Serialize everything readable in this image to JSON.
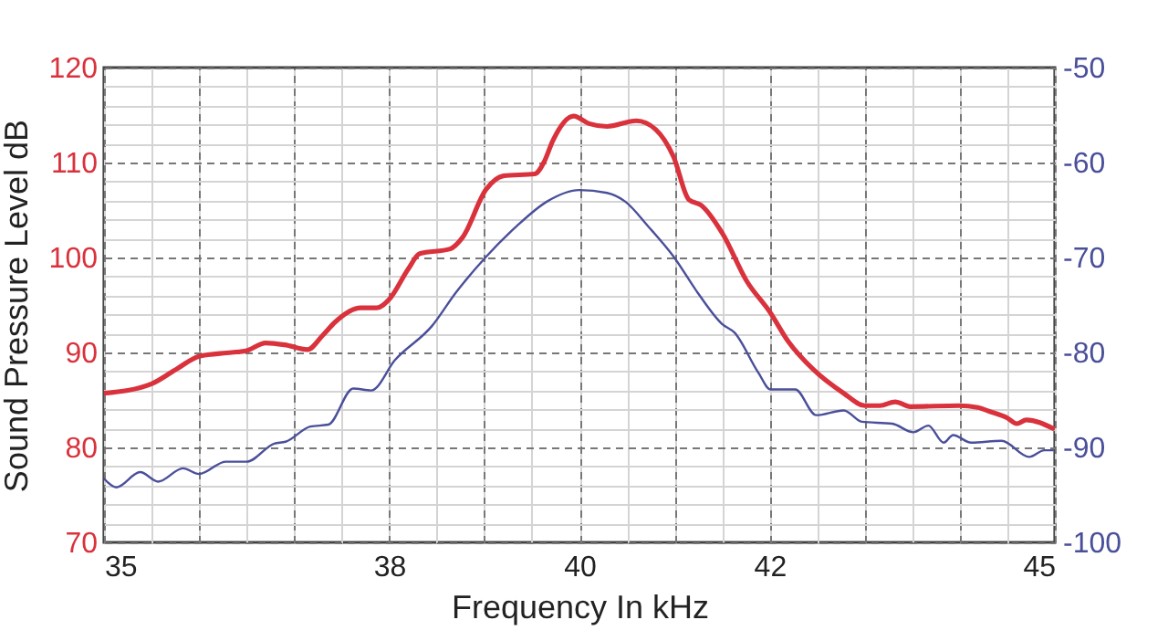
{
  "chart_data": {
    "type": "line",
    "xlabel": "Frequency In kHz",
    "ylabel": "Sound Pressure Level dB",
    "xlim": [
      35,
      45
    ],
    "xticks": [
      35,
      {
        "value": 35.5,
        "label": null
      },
      {
        "value": 36,
        "label": null
      },
      {
        "value": 36.5,
        "label": null
      },
      {
        "value": 37,
        "label": null
      },
      {
        "value": 37.5,
        "label": null
      },
      38,
      {
        "value": 38.5,
        "label": null
      },
      {
        "value": 39,
        "label": null
      },
      {
        "value": 39.5,
        "label": null
      },
      40,
      {
        "value": 40.5,
        "label": null
      },
      {
        "value": 41,
        "label": null
      },
      {
        "value": 41.5,
        "label": null
      },
      42,
      {
        "value": 42.5,
        "label": null
      },
      {
        "value": 43,
        "label": null
      },
      {
        "value": 43.5,
        "label": null
      },
      {
        "value": 44,
        "label": null
      },
      {
        "value": 44.5,
        "label": null
      },
      45
    ],
    "ylim": [
      70,
      120
    ],
    "yticks": [
      70,
      {
        "value": 72,
        "label": null
      },
      {
        "value": 74,
        "label": null
      },
      {
        "value": 76,
        "label": null
      },
      {
        "value": 78,
        "label": null
      },
      80,
      {
        "value": 82,
        "label": null
      },
      {
        "value": 84,
        "label": null
      },
      {
        "value": 86,
        "label": null
      },
      {
        "value": 88,
        "label": null
      },
      90,
      {
        "value": 92,
        "label": null
      },
      {
        "value": 94,
        "label": null
      },
      {
        "value": 96,
        "label": null
      },
      {
        "value": 98,
        "label": null
      },
      100,
      {
        "value": 102,
        "label": null
      },
      {
        "value": 104,
        "label": null
      },
      {
        "value": 106,
        "label": null
      },
      {
        "value": 108,
        "label": null
      },
      110,
      {
        "value": 112,
        "label": null
      },
      {
        "value": 114,
        "label": null
      },
      {
        "value": 116,
        "label": null
      },
      {
        "value": 118,
        "label": null
      },
      120
    ],
    "y2lim": [
      -100,
      -50
    ],
    "y2ticks": [
      -100,
      -90,
      -80,
      -70,
      -60,
      -50
    ],
    "grid": true,
    "series": [
      {
        "color": "#d9323c",
        "x": [
          35.0,
          35.5,
          35.77,
          36.0,
          36.34,
          36.5,
          36.7,
          36.9,
          37.14,
          37.3,
          37.43,
          37.7,
          37.87,
          38.0,
          38.2,
          38.32,
          38.64,
          38.77,
          39.02,
          39.2,
          39.53,
          39.63,
          39.72,
          39.94,
          40.1,
          40.29,
          40.6,
          40.8,
          40.99,
          41.15,
          41.28,
          41.5,
          41.76,
          42.0,
          42.2,
          42.46,
          42.78,
          43.0,
          43.16,
          43.32,
          43.48,
          43.99,
          44.19,
          44.31,
          44.5,
          44.6,
          44.7,
          44.98
        ],
        "values": [
          85.7,
          86.7,
          88.3,
          89.6,
          90.0,
          90.2,
          91.0,
          90.8,
          90.3,
          91.8,
          93.2,
          94.7,
          94.7,
          95.6,
          98.8,
          100.4,
          100.9,
          102.1,
          107.2,
          108.6,
          108.8,
          110.1,
          112.3,
          114.9,
          114.1,
          113.8,
          114.4,
          113.5,
          110.6,
          106.1,
          105.5,
          102.6,
          97.5,
          94.3,
          91.1,
          88.2,
          85.7,
          84.4,
          84.4,
          84.8,
          84.3,
          84.4,
          84.2,
          83.8,
          83.1,
          82.5,
          82.9,
          82.0
        ]
      },
      {
        "color": "#4a4f9a",
        "axis": "y2",
        "x": [
          35.0,
          35.13,
          35.38,
          35.57,
          35.83,
          36.0,
          36.28,
          36.5,
          36.79,
          36.91,
          37.17,
          37.36,
          37.62,
          37.81,
          38.06,
          38.45,
          38.7,
          39.02,
          39.34,
          39.66,
          40.0,
          40.29,
          40.48,
          40.73,
          40.99,
          41.25,
          41.5,
          41.63,
          41.88,
          42.01,
          42.27,
          42.49,
          42.78,
          42.97,
          43.29,
          43.51,
          43.67,
          43.83,
          43.93,
          44.12,
          44.44,
          44.73,
          44.89,
          44.98
        ],
        "values": [
          -93.3,
          -94.2,
          -92.6,
          -93.6,
          -92.2,
          -92.8,
          -91.5,
          -91.5,
          -89.6,
          -89.4,
          -87.8,
          -87.6,
          -83.8,
          -84.0,
          -80.8,
          -77.2,
          -73.7,
          -69.9,
          -66.7,
          -64.1,
          -62.9,
          -63.2,
          -64.1,
          -66.8,
          -69.9,
          -73.8,
          -77.0,
          -77.9,
          -82.1,
          -83.9,
          -83.9,
          -86.6,
          -86.1,
          -87.3,
          -87.5,
          -88.4,
          -87.7,
          -89.5,
          -88.7,
          -89.5,
          -89.3,
          -91.0,
          -90.3,
          -90.3
        ]
      }
    ]
  }
}
